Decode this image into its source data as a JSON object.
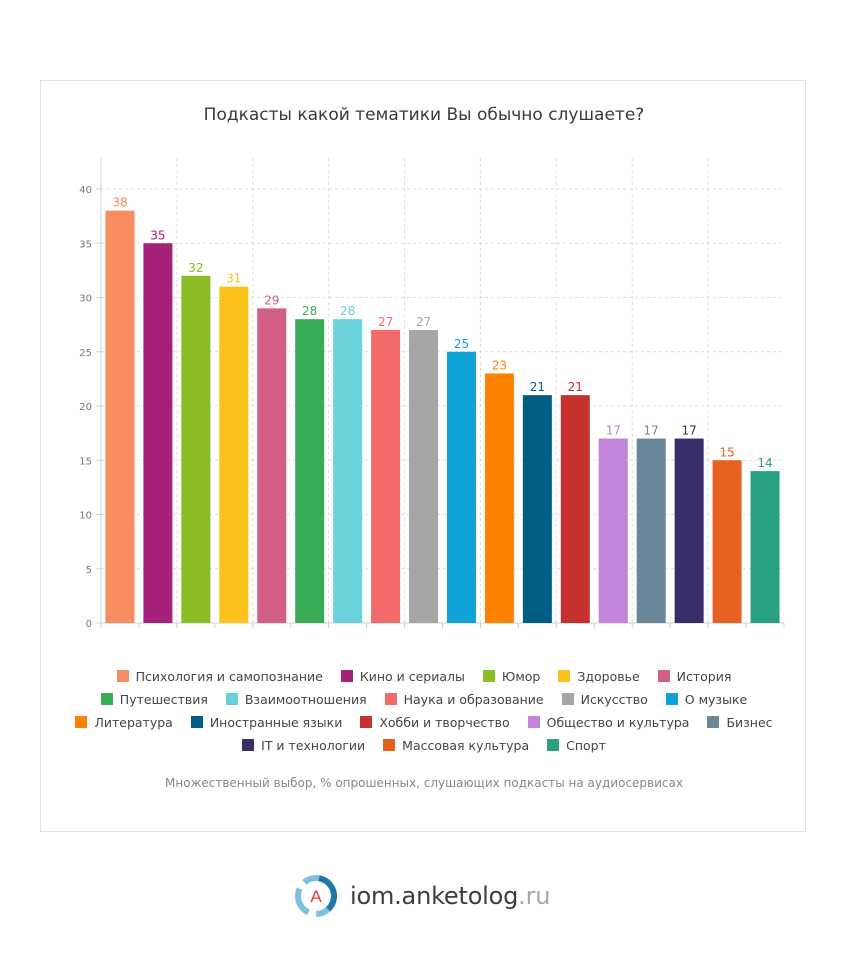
{
  "chart_data": {
    "type": "bar",
    "title": "Подкасты какой тематики Вы обычно слушаете?",
    "categories": [
      "Психология и самопознание",
      "Кино и сериалы",
      "Юмор",
      "Здоровье",
      "История",
      "Путешествия",
      "Взаимоотношения",
      "Наука и образование",
      "Искусство",
      "О музыке",
      "Литература",
      "Иностранные языки",
      "Хобби и творчество",
      "Общество и культура",
      "Бизнес",
      "IT и технологии",
      "Массовая культура",
      "Спорт"
    ],
    "values": [
      38,
      35,
      32,
      31,
      29,
      28,
      28,
      27,
      27,
      25,
      23,
      21,
      21,
      17,
      17,
      17,
      15,
      14
    ],
    "colors": [
      "#f68c5f",
      "#a5217a",
      "#8bbb25",
      "#fbc21b",
      "#d35f84",
      "#3aac55",
      "#6bd2dc",
      "#f26a6a",
      "#a6a6a6",
      "#0ea2d6",
      "#fe8102",
      "#005d84",
      "#c63130",
      "#c283db",
      "#6a8699",
      "#3a2d6a",
      "#e6601f",
      "#27a17f"
    ],
    "ylim": [
      0,
      40
    ],
    "yticks": [
      0,
      5,
      10,
      15,
      20,
      25,
      30,
      35,
      40
    ],
    "grid": true,
    "legend_position": "bottom",
    "note": "Множественный выбор, % опрошенных, слушающих подкасты на аудиосервисах"
  },
  "brand": {
    "main": "iom.anketolog",
    "tld": ".ru",
    "logo_letter": "A"
  }
}
